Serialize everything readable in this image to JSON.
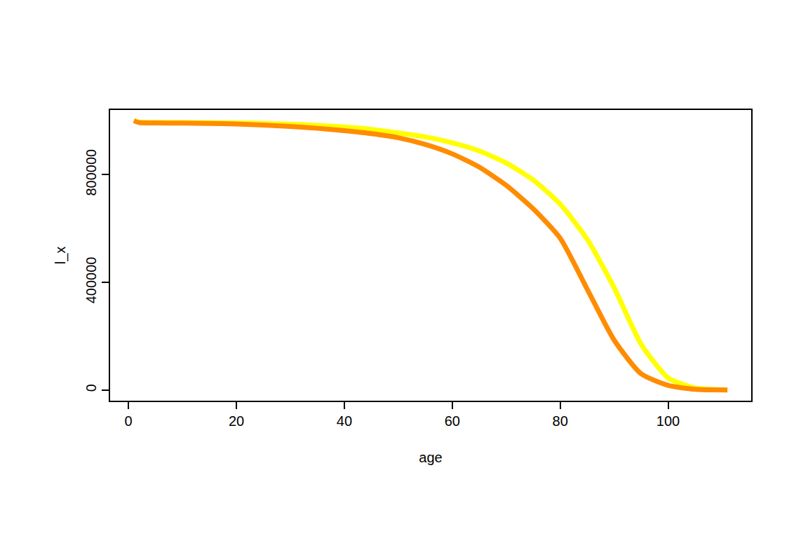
{
  "chart_data": {
    "type": "line",
    "x_label": "age",
    "y_label": "l_x",
    "x": [
      1,
      2,
      5,
      10,
      15,
      20,
      25,
      30,
      35,
      40,
      45,
      50,
      55,
      60,
      65,
      70,
      75,
      80,
      85,
      90,
      95,
      100,
      105,
      111
    ],
    "series": [
      {
        "color": "#ffff00",
        "values": [
          1000000,
          995000,
          994000,
          993500,
          993000,
          992000,
          990000,
          987000,
          983000,
          977000,
          968000,
          955000,
          940000,
          918000,
          888000,
          843000,
          780000,
          690000,
          560000,
          380000,
          170000,
          45000,
          7000,
          300
        ]
      },
      {
        "color": "#ff8c00",
        "values": [
          1000000,
          993000,
          992000,
          991000,
          990000,
          988000,
          984000,
          979000,
          972000,
          963000,
          952000,
          937000,
          912000,
          877000,
          828000,
          760000,
          673000,
          564000,
          375000,
          185000,
          60000,
          17000,
          2500,
          0
        ]
      }
    ],
    "xlim": [
      -3.4,
      115.4
    ],
    "xticks": [
      0,
      20,
      40,
      60,
      80,
      100
    ],
    "ylim": [
      -40000,
      1040000
    ],
    "yticks": [
      0,
      400000,
      800000
    ],
    "grid": false
  }
}
